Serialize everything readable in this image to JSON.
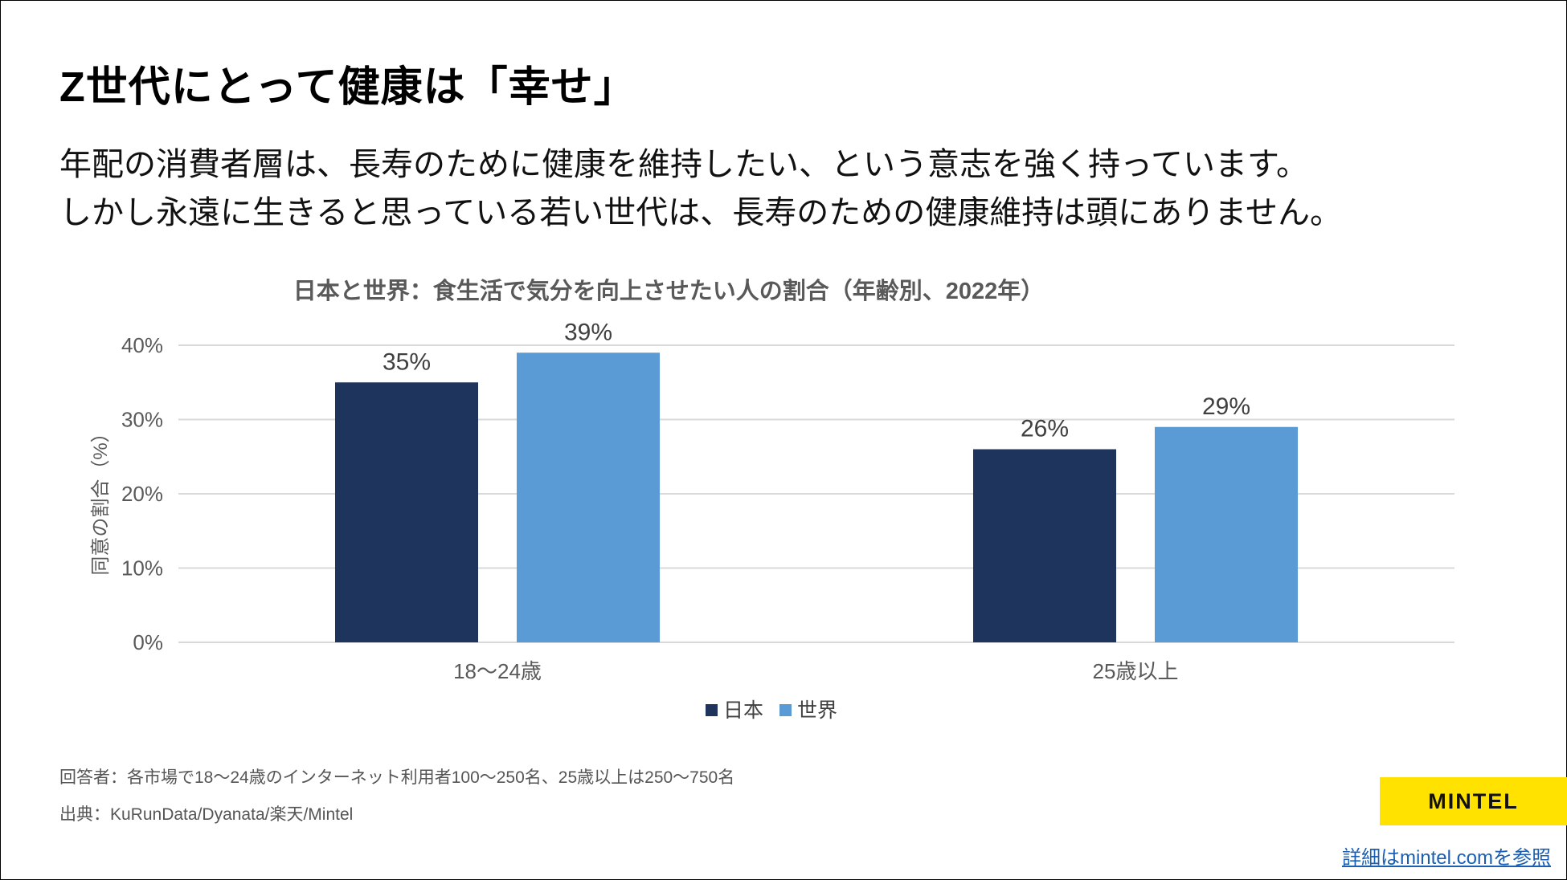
{
  "page": {
    "title": "Z世代にとって健康は「幸せ」",
    "subtitle_line1": "年配の消費者層は、長寿のために健康を維持したい、という意志を強く持っています。",
    "subtitle_line2": "しかし永遠に生きると思っている若い世代は、長寿のための健康維持は頭にありません。",
    "footnote_respondents": "回答者：各市場で18～24歳のインターネット利用者100～250名、25歳以上は250～750名",
    "footnote_source": "出典：KuRunData/Dyanata/楽天/Mintel",
    "logo": "MINTEL",
    "link": "詳細はmintel.comを参照"
  },
  "colors": {
    "japan": "#1e345d",
    "world": "#5b9bd5",
    "grid": "#d9d9d9",
    "axis_text": "#595959"
  },
  "chart_data": {
    "type": "bar",
    "title": "日本と世界：食生活で気分を向上させたい人の割合（年齢別、2022年）",
    "categories": [
      "18～24歳",
      "25歳以上"
    ],
    "series": [
      {
        "name": "日本",
        "values": [
          35,
          26
        ],
        "labels": [
          "35%",
          "26%"
        ]
      },
      {
        "name": "世界",
        "values": [
          39,
          29
        ],
        "labels": [
          "39%",
          "29%"
        ]
      }
    ],
    "ylabel": "同意の割合（%）",
    "xlabel": "",
    "ylim": [
      0,
      40
    ],
    "yticks": [
      0,
      10,
      20,
      30,
      40
    ],
    "ytick_labels": [
      "0%",
      "10%",
      "20%",
      "30%",
      "40%"
    ],
    "grid": true,
    "legend": "bottom-center"
  }
}
